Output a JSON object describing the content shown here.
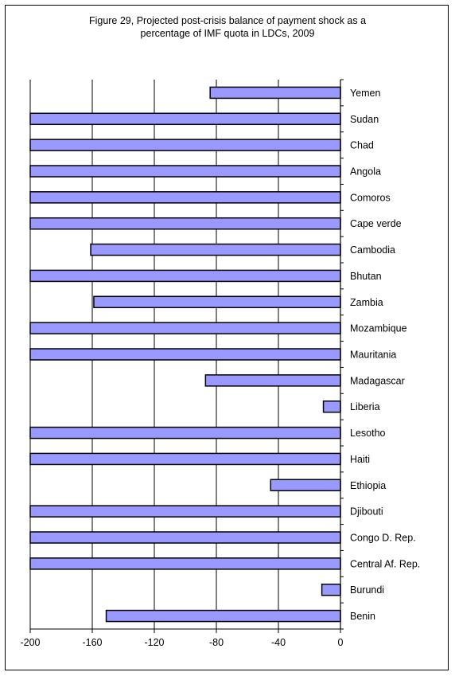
{
  "chart_data": {
    "type": "bar",
    "orientation": "horizontal",
    "title": "Figure 29,  Projected post-crisis balance of payment shock as a\npercentage of IMF quota in LDCs, 2009",
    "xlabel": "",
    "ylabel": "",
    "xlim": [
      -200,
      0
    ],
    "xticks": [
      -200,
      -160,
      -120,
      -80,
      -40,
      0
    ],
    "grid": "vertical",
    "bar_color": "#9999ff",
    "bar_edge_color": "#000000",
    "categories": [
      "Yemen",
      "Sudan",
      "Chad",
      "Angola",
      "Comoros",
      "Cape verde",
      "Cambodia",
      "Bhutan",
      "Zambia",
      "Mozambique",
      "Mauritania",
      "Madagascar",
      "Liberia",
      "Lesotho",
      "Haiti",
      "Ethiopia",
      "Djibouti",
      "Congo D. Rep.",
      "Central Af. Rep.",
      "Burundi",
      "Benin"
    ],
    "values": [
      -84,
      -200,
      -200,
      -200,
      -200,
      -200,
      -161,
      -200,
      -159,
      -200,
      -200,
      -87,
      -11,
      -200,
      -200,
      -45,
      -200,
      -200,
      -200,
      -12,
      -151
    ]
  }
}
